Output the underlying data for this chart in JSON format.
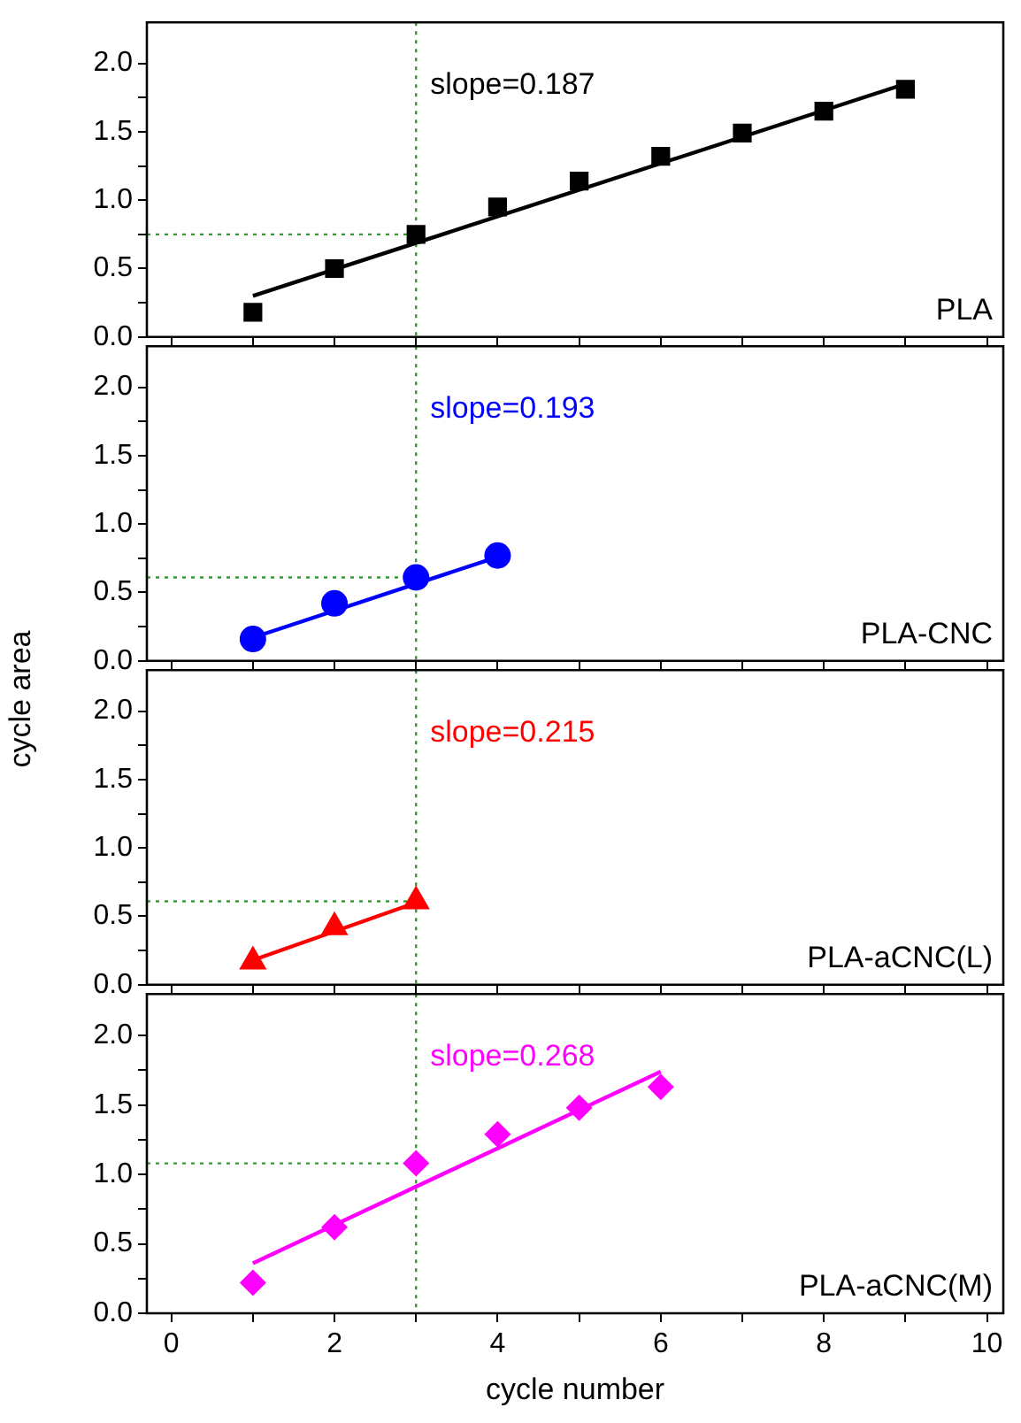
{
  "chart_data": [
    {
      "type": "line",
      "xlim": [
        -0.3,
        10.2
      ],
      "ylim": [
        0,
        2.3
      ],
      "tick_labels": "y",
      "xticks": [
        0,
        {
          "value": 1,
          "label": null
        },
        2,
        {
          "value": 3,
          "label": null
        },
        4,
        {
          "value": 5,
          "label": null
        },
        6,
        {
          "value": 7,
          "label": null
        },
        8,
        {
          "value": 9,
          "label": null
        },
        10
      ],
      "yticks": [
        {
          "value": 0,
          "label": "0.0"
        },
        {
          "value": 0.25,
          "label": null
        },
        {
          "value": 0.5,
          "label": "0.5"
        },
        {
          "value": 0.75,
          "label": null
        },
        {
          "value": 1,
          "label": "1.0"
        },
        {
          "value": 1.25,
          "label": null
        },
        {
          "value": 1.5,
          "label": "1.5"
        },
        {
          "value": 1.75,
          "label": null
        },
        {
          "value": 2,
          "label": "2.0"
        }
      ],
      "series": [
        {
          "name": "PLA",
          "type": "scatter",
          "marker": "square",
          "color": "#000000",
          "x": [
            1,
            2,
            3,
            4,
            5,
            6,
            7,
            8,
            9
          ],
          "values": [
            0.18,
            0.5,
            0.75,
            0.95,
            1.14,
            1.32,
            1.49,
            1.65,
            1.81
          ]
        },
        {
          "color": "#000000",
          "x": [
            1,
            9
          ],
          "values": [
            0.3,
            1.85
          ]
        },
        {
          "type": "line",
          "line_style": "dotted",
          "color": "#339933",
          "x": [
            -0.3,
            3
          ],
          "values": [
            0.75,
            0.75
          ]
        }
      ],
      "ref_lines": [
        {
          "axis": "x",
          "value": 3,
          "color": "#339933",
          "line_style": "dotted"
        }
      ],
      "annotations": [
        "slope=0.187"
      ]
    },
    {
      "type": "line",
      "xlim": [
        -0.3,
        10.2
      ],
      "ylim": [
        0,
        2.3
      ],
      "tick_labels": "y",
      "ylabel": "cycle area",
      "xticks": [
        0,
        {
          "value": 1,
          "label": null
        },
        2,
        {
          "value": 3,
          "label": null
        },
        4,
        {
          "value": 5,
          "label": null
        },
        6,
        {
          "value": 7,
          "label": null
        },
        8,
        {
          "value": 9,
          "label": null
        },
        10
      ],
      "yticks": [
        {
          "value": 0,
          "label": "0.0"
        },
        {
          "value": 0.25,
          "label": null
        },
        {
          "value": 0.5,
          "label": "0.5"
        },
        {
          "value": 0.75,
          "label": null
        },
        {
          "value": 1,
          "label": "1.0"
        },
        {
          "value": 1.25,
          "label": null
        },
        {
          "value": 1.5,
          "label": "1.5"
        },
        {
          "value": 1.75,
          "label": null
        },
        {
          "value": 2,
          "label": "2.0"
        }
      ],
      "series": [
        {
          "name": "PLA-CNC",
          "type": "scatter",
          "marker": "circle",
          "color": "#0000ff",
          "x": [
            1,
            2,
            3,
            4
          ],
          "values": [
            0.16,
            0.42,
            0.61,
            0.77
          ]
        },
        {
          "color": "#0000ff",
          "x": [
            1,
            4
          ],
          "values": [
            0.17,
            0.76
          ]
        },
        {
          "type": "line",
          "line_style": "dotted",
          "color": "#339933",
          "x": [
            -0.3,
            3
          ],
          "values": [
            0.61,
            0.61
          ]
        }
      ],
      "ref_lines": [
        {
          "axis": "x",
          "value": 3,
          "color": "#339933",
          "line_style": "dotted"
        }
      ],
      "annotations": [
        "slope=0.193"
      ]
    },
    {
      "type": "line",
      "xlim": [
        -0.3,
        10.2
      ],
      "ylim": [
        0,
        2.3
      ],
      "tick_labels": "y",
      "xticks": [
        0,
        {
          "value": 1,
          "label": null
        },
        2,
        {
          "value": 3,
          "label": null
        },
        4,
        {
          "value": 5,
          "label": null
        },
        6,
        {
          "value": 7,
          "label": null
        },
        8,
        {
          "value": 9,
          "label": null
        },
        10
      ],
      "yticks": [
        {
          "value": 0,
          "label": "0.0"
        },
        {
          "value": 0.25,
          "label": null
        },
        {
          "value": 0.5,
          "label": "0.5"
        },
        {
          "value": 0.75,
          "label": null
        },
        {
          "value": 1,
          "label": "1.0"
        },
        {
          "value": 1.25,
          "label": null
        },
        {
          "value": 1.5,
          "label": "1.5"
        },
        {
          "value": 1.75,
          "label": null
        },
        {
          "value": 2,
          "label": "2.0"
        }
      ],
      "series": [
        {
          "name": "PLA-aCNC(L)",
          "type": "scatter",
          "marker": "triangle",
          "color": "#ff0000",
          "x": [
            1,
            2,
            3
          ],
          "values": [
            0.17,
            0.42,
            0.61
          ]
        },
        {
          "color": "#ff0000",
          "x": [
            1,
            3
          ],
          "values": [
            0.18,
            0.6
          ]
        },
        {
          "type": "line",
          "line_style": "dotted",
          "color": "#339933",
          "x": [
            -0.3,
            3
          ],
          "values": [
            0.61,
            0.61
          ]
        }
      ],
      "ref_lines": [
        {
          "axis": "x",
          "value": 3,
          "color": "#339933",
          "line_style": "dotted"
        }
      ],
      "annotations": [
        "slope=0.215"
      ]
    },
    {
      "type": "line",
      "xlim": [
        -0.3,
        10.2
      ],
      "ylim": [
        0,
        2.3
      ],
      "xlabel": "cycle number",
      "xticks": [
        0,
        {
          "value": 1,
          "label": null
        },
        2,
        {
          "value": 3,
          "label": null
        },
        4,
        {
          "value": 5,
          "label": null
        },
        6,
        {
          "value": 7,
          "label": null
        },
        8,
        {
          "value": 9,
          "label": null
        },
        10
      ],
      "yticks": [
        {
          "value": 0,
          "label": "0.0"
        },
        {
          "value": 0.25,
          "label": null
        },
        {
          "value": 0.5,
          "label": "0.5"
        },
        {
          "value": 0.75,
          "label": null
        },
        {
          "value": 1,
          "label": "1.0"
        },
        {
          "value": 1.25,
          "label": null
        },
        {
          "value": 1.5,
          "label": "1.5"
        },
        {
          "value": 1.75,
          "label": null
        },
        {
          "value": 2,
          "label": "2.0"
        }
      ],
      "series": [
        {
          "name": "PLA-aCNC(M)",
          "type": "scatter",
          "marker": "diamond",
          "color": "#ff00ff",
          "x": [
            1,
            2,
            3,
            4,
            5,
            6
          ],
          "values": [
            0.22,
            0.62,
            1.08,
            1.29,
            1.48,
            1.63
          ]
        },
        {
          "color": "#ff00ff",
          "x": [
            1,
            6
          ],
          "values": [
            0.36,
            1.74
          ]
        },
        {
          "type": "line",
          "line_style": "dotted",
          "color": "#339933",
          "x": [
            -0.3,
            3
          ],
          "values": [
            1.08,
            1.08
          ]
        }
      ],
      "ref_lines": [
        {
          "axis": "x",
          "value": 3,
          "color": "#339933",
          "line_style": "dotted"
        }
      ],
      "annotations": [
        "slope=0.268"
      ]
    }
  ]
}
